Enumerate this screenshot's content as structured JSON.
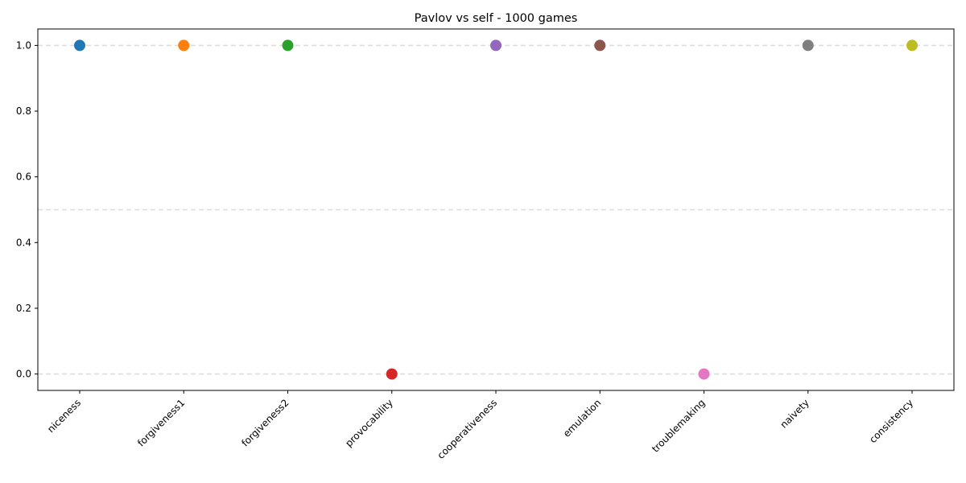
{
  "chart_data": {
    "type": "scatter",
    "title": "Pavlov vs self - 1000 games",
    "xlabel": "",
    "ylabel": "",
    "categories": [
      "niceness",
      "forgiveness1",
      "forgiveness2",
      "provocability",
      "cooperativeness",
      "emulation",
      "troublemaking",
      "naivety",
      "consistency"
    ],
    "values": [
      1.0,
      1.0,
      1.0,
      0.0,
      1.0,
      1.0,
      0.0,
      1.0,
      1.0
    ],
    "colors": [
      "#1f77b4",
      "#ff7f0e",
      "#2ca02c",
      "#d62728",
      "#9467bd",
      "#8c564b",
      "#e377c2",
      "#7f7f7f",
      "#bcbd22"
    ],
    "ylim": [
      -0.05,
      1.05
    ],
    "yticks": [
      0.0,
      0.2,
      0.4,
      0.6,
      0.8,
      1.0
    ],
    "ytick_labels": [
      "0.0",
      "0.2",
      "0.4",
      "0.6",
      "0.8",
      "1.0"
    ],
    "reference_lines": [
      0.0,
      0.5,
      1.0
    ],
    "grid": false,
    "legend": "none"
  }
}
